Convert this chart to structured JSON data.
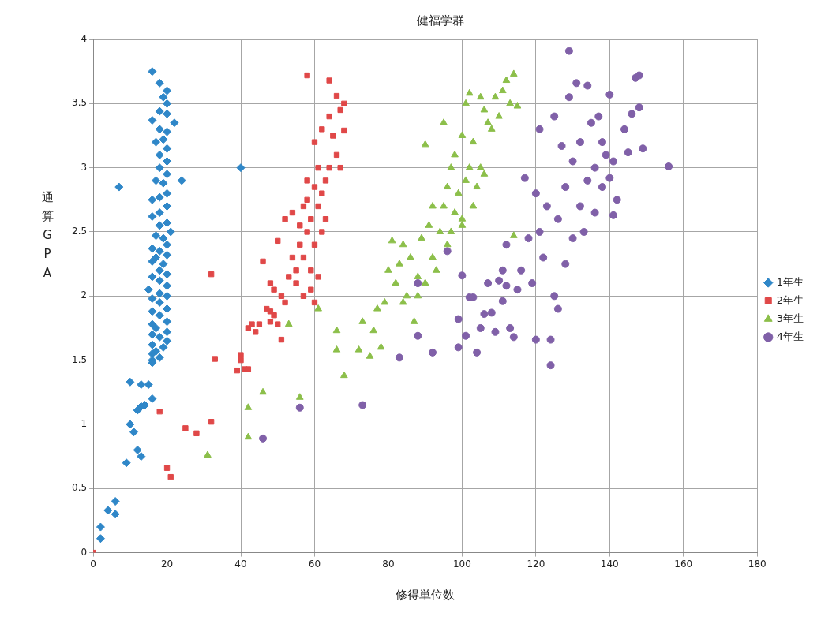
{
  "chart_data": {
    "type": "scatter",
    "title": "健福学群",
    "xlabel": "修得単位数",
    "ylabel": "通算GPA",
    "xlim": [
      0,
      180
    ],
    "xticks": [
      0,
      20,
      40,
      60,
      80,
      100,
      120,
      140,
      160,
      180
    ],
    "ylim": [
      0,
      4
    ],
    "yticks": [
      0,
      0.5,
      1,
      1.5,
      2,
      2.5,
      3,
      3.5,
      4
    ],
    "grid": true,
    "legend": "right",
    "series": [
      {
        "name": "1年生",
        "color": "#2f87c8",
        "marker": "diamond",
        "x": [
          2,
          2,
          4,
          6,
          6,
          9,
          10,
          11,
          12,
          13,
          12,
          13,
          14,
          15,
          13,
          10,
          16,
          7,
          40,
          24,
          22,
          16,
          18,
          20,
          19,
          20,
          18,
          20,
          16,
          18,
          20,
          19,
          17,
          20,
          18,
          20,
          18,
          20,
          17,
          19,
          20,
          18,
          16,
          20,
          18,
          16,
          20,
          18,
          21,
          17,
          19,
          20,
          16,
          18,
          20,
          17,
          16,
          19,
          18,
          20,
          16,
          18,
          20,
          15,
          18,
          20,
          16,
          18,
          20,
          16,
          18,
          20,
          16,
          17,
          20,
          16,
          18,
          20,
          16,
          19,
          17,
          16,
          18,
          16,
          16
        ],
        "values": [
          0.11,
          0.2,
          0.33,
          0.3,
          0.4,
          0.7,
          1.0,
          0.94,
          0.8,
          0.75,
          1.11,
          1.14,
          1.15,
          1.31,
          1.31,
          1.33,
          1.2,
          2.85,
          3.0,
          2.9,
          3.35,
          3.75,
          3.66,
          3.6,
          3.55,
          3.5,
          3.44,
          3.42,
          3.37,
          3.3,
          3.28,
          3.22,
          3.2,
          3.15,
          3.1,
          3.05,
          3.0,
          2.95,
          2.9,
          2.88,
          2.8,
          2.77,
          2.75,
          2.7,
          2.65,
          2.62,
          2.57,
          2.55,
          2.5,
          2.47,
          2.45,
          2.4,
          2.37,
          2.35,
          2.32,
          2.3,
          2.27,
          2.25,
          2.2,
          2.17,
          2.15,
          2.12,
          2.08,
          2.05,
          2.02,
          2.0,
          1.98,
          1.95,
          1.9,
          1.88,
          1.85,
          1.8,
          1.78,
          1.75,
          1.72,
          1.7,
          1.68,
          1.65,
          1.62,
          1.6,
          1.57,
          1.55,
          1.52,
          1.5,
          1.48
        ]
      },
      {
        "name": "2年生",
        "color": "#e04848",
        "marker": "square",
        "x": [
          0,
          20,
          21,
          25,
          28,
          32,
          18,
          32,
          33,
          39,
          40,
          40,
          41,
          42,
          42,
          43,
          44,
          45,
          46,
          47,
          48,
          48,
          48,
          49,
          49,
          50,
          51,
          50,
          51,
          52,
          52,
          53,
          54,
          54,
          55,
          55,
          56,
          56,
          57,
          57,
          58,
          58,
          58,
          59,
          59,
          60,
          60,
          60,
          61,
          61,
          61,
          62,
          62,
          63,
          63,
          64,
          64,
          64,
          65,
          66,
          66,
          67,
          67,
          68,
          68,
          59,
          57,
          60,
          62,
          58
        ],
        "values": [
          0,
          0.66,
          0.59,
          0.97,
          0.93,
          1.02,
          1.1,
          2.17,
          1.51,
          1.42,
          1.54,
          1.5,
          1.43,
          1.43,
          1.75,
          1.78,
          1.72,
          1.78,
          2.27,
          1.9,
          1.88,
          1.8,
          2.1,
          1.85,
          2.05,
          1.78,
          1.66,
          2.43,
          2.0,
          1.95,
          2.6,
          2.15,
          2.65,
          2.3,
          2.2,
          2.1,
          2.55,
          2.4,
          2.3,
          2.7,
          2.9,
          3.72,
          2.5,
          2.2,
          2.6,
          2.85,
          3.2,
          2.4,
          2.7,
          3.0,
          2.15,
          2.8,
          3.3,
          2.9,
          2.6,
          3.4,
          3.68,
          3.0,
          3.25,
          3.56,
          3.1,
          3.45,
          3.0,
          3.5,
          3.29,
          2.05,
          2.0,
          1.95,
          2.5,
          2.75
        ]
      },
      {
        "name": "3年生",
        "color": "#8cbf4a",
        "marker": "triangle",
        "x": [
          31,
          42,
          42,
          46,
          56,
          53,
          61,
          66,
          66,
          68,
          72,
          73,
          75,
          76,
          77,
          78,
          79,
          80,
          81,
          82,
          83,
          84,
          84,
          85,
          86,
          87,
          88,
          89,
          90,
          90,
          91,
          92,
          93,
          94,
          95,
          95,
          96,
          97,
          97,
          98,
          98,
          99,
          100,
          100,
          101,
          101,
          102,
          102,
          103,
          103,
          104,
          105,
          105,
          106,
          107,
          108,
          109,
          110,
          111,
          112,
          113,
          114,
          115,
          114,
          106,
          100,
          96,
          92,
          88
        ],
        "values": [
          0.76,
          0.9,
          1.13,
          1.25,
          1.21,
          1.78,
          1.9,
          1.73,
          1.58,
          1.38,
          1.58,
          1.8,
          1.53,
          1.73,
          1.9,
          1.6,
          1.95,
          2.2,
          2.43,
          2.1,
          2.25,
          2.4,
          1.95,
          2.0,
          2.3,
          1.8,
          2.15,
          2.45,
          3.18,
          2.1,
          2.55,
          2.3,
          2.2,
          2.5,
          3.35,
          2.7,
          2.85,
          3.0,
          2.5,
          2.65,
          3.1,
          2.8,
          3.25,
          2.55,
          3.5,
          2.9,
          3.0,
          3.58,
          2.7,
          3.2,
          2.85,
          3.55,
          3.0,
          3.45,
          3.35,
          3.3,
          3.55,
          3.4,
          3.6,
          3.68,
          3.5,
          3.73,
          3.48,
          2.47,
          2.95,
          2.6,
          2.4,
          2.7,
          2.0
        ]
      },
      {
        "name": "4年生",
        "color": "#8060a8",
        "marker": "circle",
        "x": [
          46,
          56,
          73,
          83,
          88,
          88,
          92,
          96,
          99,
          99,
          100,
          101,
          102,
          103,
          104,
          105,
          106,
          107,
          108,
          109,
          110,
          111,
          112,
          113,
          114,
          115,
          112,
          111,
          116,
          117,
          118,
          119,
          120,
          120,
          121,
          121,
          122,
          123,
          124,
          124,
          125,
          125,
          126,
          126,
          127,
          128,
          128,
          129,
          129,
          130,
          130,
          131,
          132,
          132,
          133,
          134,
          134,
          135,
          136,
          136,
          137,
          138,
          138,
          139,
          140,
          140,
          141,
          141,
          142,
          144,
          145,
          146,
          147,
          148,
          148,
          149,
          156
        ],
        "values": [
          0.89,
          1.13,
          1.15,
          1.52,
          1.69,
          2.1,
          1.56,
          2.35,
          1.6,
          1.82,
          2.16,
          1.69,
          1.99,
          1.99,
          1.56,
          1.75,
          1.86,
          2.1,
          1.87,
          1.72,
          2.12,
          1.96,
          2.08,
          1.75,
          1.68,
          2.05,
          2.4,
          2.2,
          2.2,
          2.92,
          2.45,
          2.1,
          1.66,
          2.8,
          2.5,
          3.3,
          2.3,
          2.7,
          1.66,
          1.46,
          2.0,
          3.4,
          2.6,
          1.9,
          3.17,
          2.25,
          2.85,
          3.91,
          3.55,
          2.45,
          3.05,
          3.66,
          2.7,
          3.2,
          2.5,
          3.64,
          2.9,
          3.35,
          2.65,
          3.0,
          3.4,
          2.85,
          3.2,
          3.1,
          3.57,
          2.92,
          2.63,
          3.05,
          2.75,
          3.3,
          3.12,
          3.42,
          3.7,
          3.72,
          3.47,
          3.15,
          3.01
        ]
      }
    ]
  }
}
